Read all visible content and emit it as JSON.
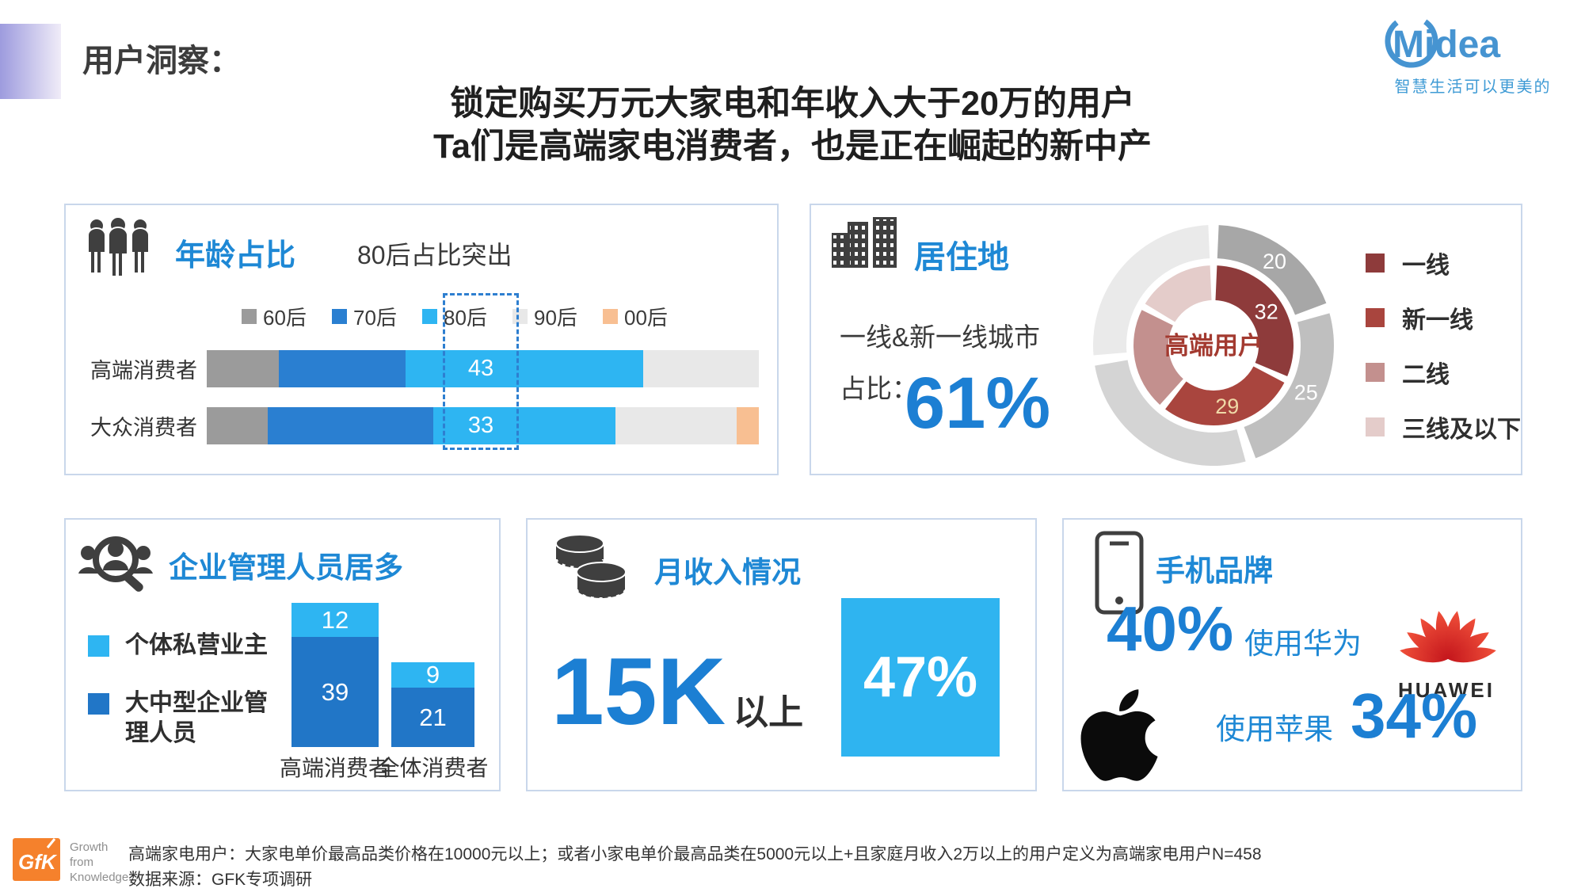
{
  "header": {
    "section_title": "用户洞察：",
    "main_title_line1": "锁定购买万元大家电和年收入大于20万的用户",
    "main_title_line2": "Ta们是高端家电消费者，也是正在崛起的新中产"
  },
  "brand": {
    "logo_text": "Midea",
    "tagline": "智慧生活可以更美的",
    "color": "#4694D1"
  },
  "panels": {
    "age": {
      "title": "年龄占比",
      "subtitle": "80后占比突出"
    },
    "residence": {
      "title": "居住地",
      "line1": "一线&新一线城市",
      "line2": "占比：",
      "big_value": "61%"
    },
    "occupation": {
      "title": "企业管理人员居多"
    },
    "income": {
      "title": "月收入情况",
      "big_value": "15K",
      "suffix": "以上",
      "box_value": "47%"
    },
    "phone": {
      "title": "手机品牌",
      "huawei_pct": "40%",
      "huawei_label": "使用华为",
      "huawei_brand": "HUAWEI",
      "apple_label": "使用苹果",
      "apple_pct": "34%"
    }
  },
  "footer": {
    "gfk_logo": "GfK",
    "gfk_sub": [
      "Growth",
      "from",
      "Knowledge"
    ],
    "note_line1": "高端家电用户：大家电单价最高品类价格在10000元以上；或者小家电单价最高品类在5000元以上+且家庭月收入2万以上的用户定义为高端家电用户N=458",
    "note_line2": "数据来源：GFK专项调研"
  },
  "chart_data": [
    {
      "type": "bar",
      "subtype": "horizontal-stacked-percent",
      "title": "年龄占比",
      "annotation": "80后占比突出",
      "categories": [
        "高端消费者",
        "大众消费者"
      ],
      "series": [
        {
          "name": "60后",
          "color": "#9B9B9B",
          "values": [
            13,
            11
          ]
        },
        {
          "name": "70后",
          "color": "#2A7FD1",
          "values": [
            23,
            30
          ]
        },
        {
          "name": "80后",
          "color": "#2EB5F2",
          "values": [
            43,
            33
          ]
        },
        {
          "name": "90后",
          "color": "#E8E8E8",
          "values": [
            21,
            22
          ]
        },
        {
          "name": "00后",
          "color": "#F8BF92",
          "values": [
            0,
            4
          ]
        }
      ],
      "highlighted_series": "80后",
      "shown_value_labels": [
        "43",
        "33"
      ],
      "xlim": [
        0,
        100
      ]
    },
    {
      "type": "pie",
      "subtype": "double-ring-donut",
      "title": "居住地",
      "center_label": "高端用户",
      "center_label_color": "#A33A30",
      "legend": [
        "一线",
        "新一线",
        "二线",
        "三线及以下"
      ],
      "legend_position": "right",
      "callout": "一线&新一线城市占比：61%",
      "rings": [
        {
          "id": "outer-reference-ring",
          "values": [
            20,
            25,
            28,
            27
          ],
          "colors": [
            "#A7A7A7",
            "#BFBFBF",
            "#D4D4D4",
            "#EAEAEA"
          ],
          "labels": [
            {
              "seg": 0,
              "text": "20",
              "color": "#FFFFFF"
            },
            {
              "seg": 1,
              "text": "25",
              "color": "#FFFFFF"
            }
          ]
        },
        {
          "id": "inner-premium-user-ring",
          "values": [
            32,
            29,
            22,
            17
          ],
          "colors": [
            "#8E3B3B",
            "#A9453E",
            "#C3908E",
            "#E4CCCA"
          ],
          "labels": [
            {
              "seg": 0,
              "text": "32",
              "color": "#FFFFFF"
            },
            {
              "seg": 1,
              "text": "29",
              "color": "#EFD9A7"
            }
          ]
        }
      ]
    },
    {
      "type": "bar",
      "subtype": "vertical-stacked",
      "title": "企业管理人员居多",
      "categories": [
        "高端消费者",
        "全体消费者"
      ],
      "series": [
        {
          "name": "个体私营业主",
          "color": "#2EB5F2",
          "values": [
            12,
            9
          ]
        },
        {
          "name": "大中型企业管理人员",
          "color": "#2176C7",
          "values": [
            39,
            21
          ]
        }
      ]
    },
    {
      "type": "kpi",
      "title": "月收入情况",
      "label": "15K以上",
      "value": 47,
      "unit": "%"
    },
    {
      "type": "kpi",
      "title": "手机品牌",
      "items": [
        {
          "brand": "华为",
          "value": 40,
          "unit": "%"
        },
        {
          "brand": "苹果",
          "value": 34,
          "unit": "%"
        }
      ]
    }
  ]
}
